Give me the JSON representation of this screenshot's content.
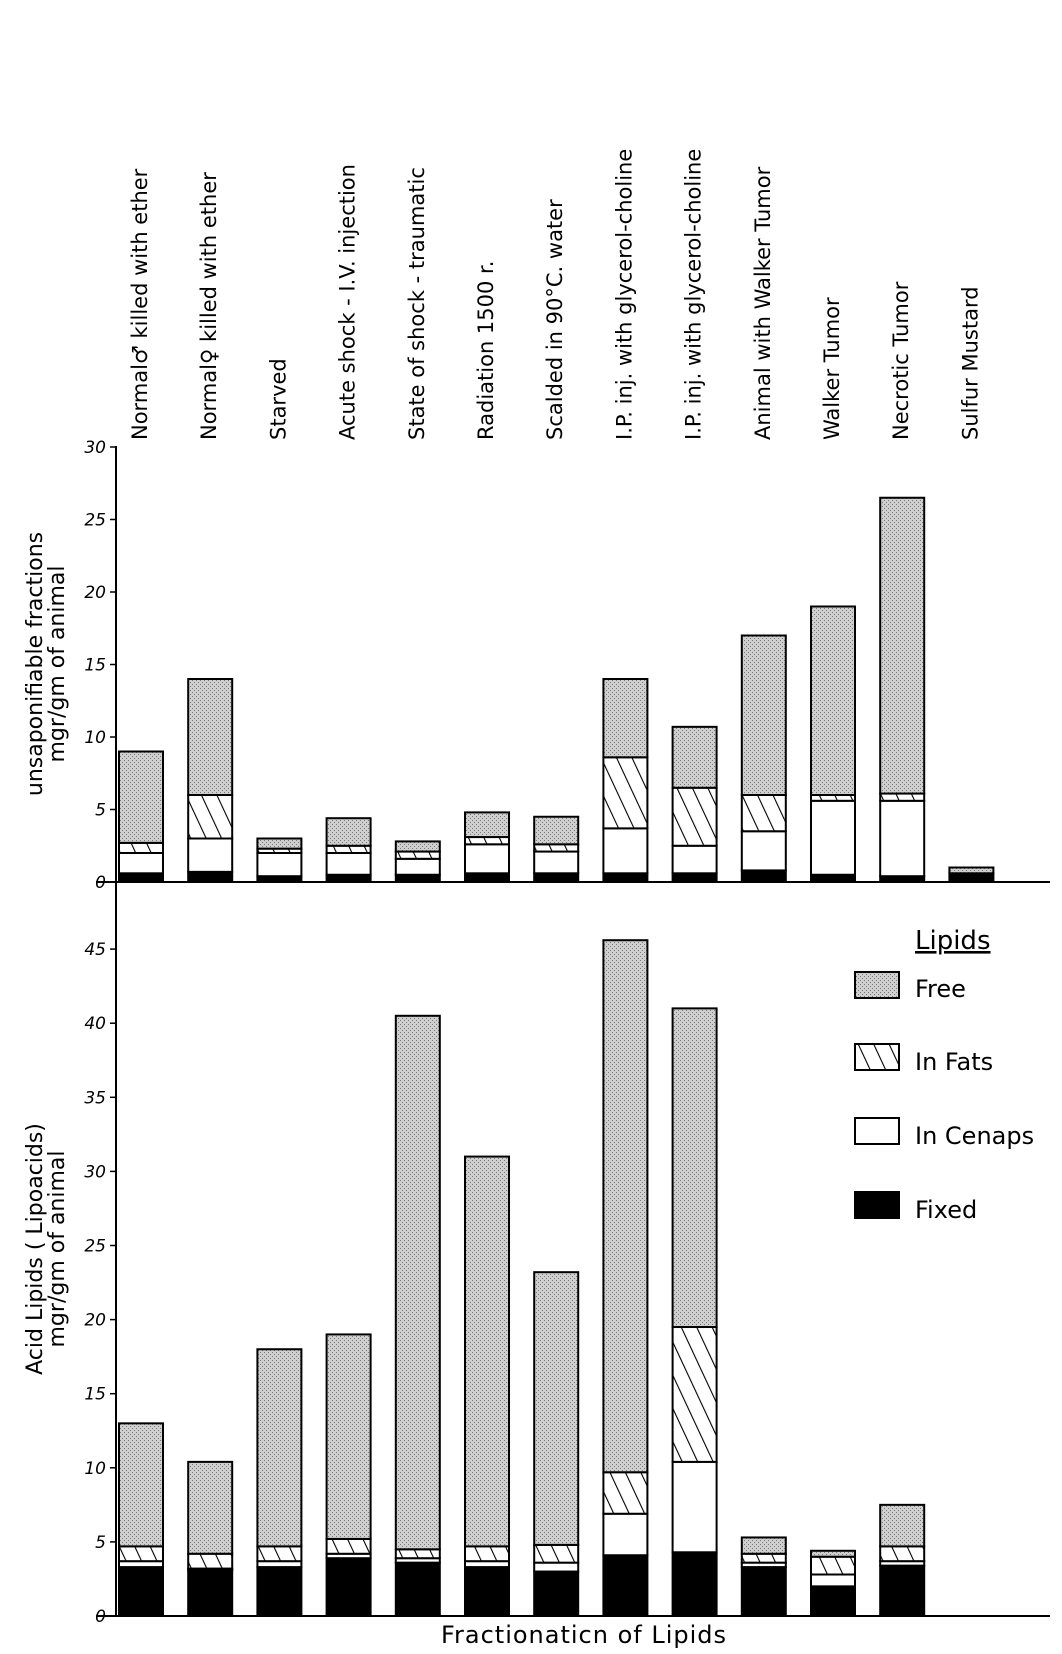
{
  "chart_data": {
    "type": "bar",
    "stacked": true,
    "categories": [
      "Normal♂ killed with ether",
      "Normal♀ killed with ether",
      "Starved",
      "Acute shock - I.V. injection",
      "State of shock - traumatic",
      "Radiation 1500 r.",
      "Scalded in 90°C. water",
      "I.P. inj. with glycerol-choline",
      "I.P. inj. with glycerol-choline",
      "Animal with Walker Tumor",
      "Walker Tumor",
      "Necrotic Tumor",
      "Sulfur Mustard"
    ],
    "xlabel": "Fractionaticn of Lipids",
    "legend": {
      "title": "Lipids",
      "position": "right",
      "items": [
        {
          "label": "Free",
          "pattern": "stipple"
        },
        {
          "label": "In Fats",
          "pattern": "hatch"
        },
        {
          "label": "In Cenaps",
          "pattern": "white"
        },
        {
          "label": "Fixed",
          "pattern": "black"
        }
      ]
    },
    "panels": [
      {
        "ylabel_line1": "unsaponifiable fractions",
        "ylabel_line2": "mgr/gm of animal",
        "ylim": [
          0,
          30
        ],
        "ticks": [
          "0",
          "5",
          "10",
          "15",
          "20",
          "25",
          "30"
        ],
        "series": [
          {
            "name": "Fixed",
            "values": [
              0.6,
              0.7,
              0.4,
              0.5,
              0.5,
              0.6,
              0.6,
              0.6,
              0.6,
              0.8,
              0.5,
              0.4,
              0.6
            ]
          },
          {
            "name": "In Cenaps",
            "values": [
              1.4,
              2.3,
              1.6,
              1.5,
              1.1,
              2.0,
              1.5,
              3.1,
              1.9,
              2.7,
              5.1,
              5.2,
              0.0
            ]
          },
          {
            "name": "In Fats",
            "values": [
              0.7,
              3.0,
              0.3,
              0.5,
              0.5,
              0.5,
              0.5,
              4.9,
              4.0,
              2.5,
              0.4,
              0.5,
              0.0
            ]
          },
          {
            "name": "Free",
            "values": [
              6.3,
              8.0,
              0.7,
              1.9,
              0.7,
              1.7,
              1.9,
              5.4,
              4.2,
              11.0,
              13.0,
              20.4,
              0.4
            ]
          }
        ]
      },
      {
        "ylabel_line1": "Acid Lipids ( Lipoacids)",
        "ylabel_line2": "mgr/gm of animal",
        "ylim": [
          0,
          50
        ],
        "ticks": [
          "0",
          "5",
          "10",
          "15",
          "20",
          "25",
          "30",
          "35",
          "40",
          "45"
        ],
        "series": [
          {
            "name": "Fixed",
            "values": [
              3.3,
              3.1,
              3.3,
              3.9,
              3.6,
              3.3,
              3.0,
              4.1,
              4.3,
              3.3,
              2.0,
              3.4,
              0.0
            ]
          },
          {
            "name": "In Cenaps",
            "values": [
              0.4,
              0.1,
              0.4,
              0.3,
              0.3,
              0.4,
              0.6,
              2.8,
              6.1,
              0.3,
              0.8,
              0.3,
              0.0
            ]
          },
          {
            "name": "In Fats",
            "values": [
              1.0,
              1.0,
              1.0,
              1.0,
              0.6,
              1.0,
              1.2,
              2.8,
              9.1,
              0.6,
              1.2,
              1.0,
              0.0
            ]
          },
          {
            "name": "Free",
            "values": [
              8.3,
              6.2,
              13.3,
              13.8,
              36.0,
              26.3,
              18.4,
              35.9,
              21.5,
              1.1,
              0.4,
              2.8,
              0.0
            ]
          }
        ]
      }
    ]
  }
}
